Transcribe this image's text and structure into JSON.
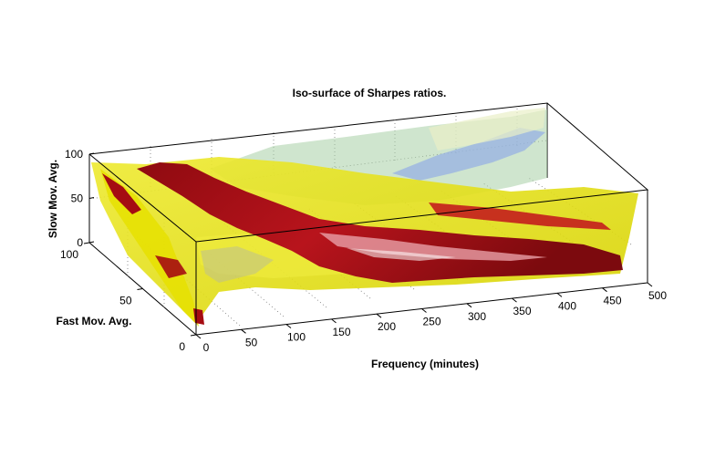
{
  "chart_data": {
    "type": "isosurface-3d",
    "title": "Iso-surface of Sharpes ratios.",
    "x_axis": {
      "label": "Frequency (minutes)",
      "ticks": [
        "0",
        "50",
        "100",
        "150",
        "200",
        "250",
        "300",
        "350",
        "400",
        "450",
        "500"
      ],
      "range": [
        0,
        500
      ]
    },
    "y_axis": {
      "label": "Fast Mov. Avg.",
      "ticks": [
        "0",
        "50",
        "100"
      ],
      "range": [
        0,
        100
      ]
    },
    "z_axis": {
      "label": "Slow Mov. Avg.",
      "ticks": [
        "0",
        "50",
        "100"
      ],
      "range": [
        0,
        100
      ]
    },
    "box": true,
    "grid": true,
    "colors": {
      "high": "#a50c12",
      "mid": "#e5e000",
      "low": "#9ec6a8",
      "lowest": "#8fa6e8"
    }
  }
}
